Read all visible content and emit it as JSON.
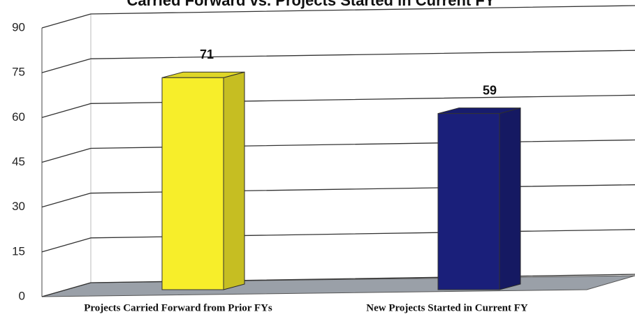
{
  "chart_data": {
    "type": "bar3d",
    "title": "Carried Forward vs. Projects Started in Current FY",
    "categories": [
      "Projects Carried Forward from Prior FYs",
      "New Projects Started in Current FY"
    ],
    "values": [
      71,
      59
    ],
    "colors": [
      "#f7ee2a",
      "#1a1f7a"
    ],
    "ylim": [
      0,
      90
    ],
    "yticks": [
      0,
      15,
      30,
      45,
      60,
      75,
      90
    ],
    "grid": true
  }
}
